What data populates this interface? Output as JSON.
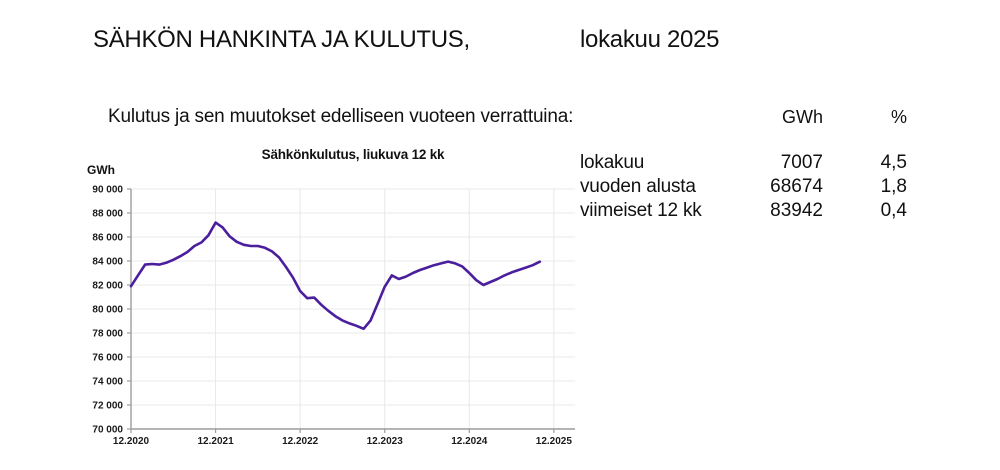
{
  "header": {
    "title": "SÄHKÖN HANKINTA JA KULUTUS,",
    "period": "lokakuu 2025"
  },
  "summary": {
    "caption": "Kulutus ja sen muutokset edelliseen vuoteen verrattuina:",
    "columns": {
      "gwh": "GWh",
      "pct": "%"
    },
    "rows": [
      {
        "label": "lokakuu",
        "gwh": "7007",
        "pct": "4,5"
      },
      {
        "label": "vuoden alusta",
        "gwh": "68674",
        "pct": "1,8"
      },
      {
        "label": "viimeiset 12 kk",
        "gwh": "83942",
        "pct": "0,4"
      }
    ]
  },
  "chart_data": {
    "type": "line",
    "title": "Sähkönkulutus, liukuva 12 kk",
    "ylabel": "GWh",
    "ylim": [
      70000,
      90000
    ],
    "ytick_step": 2000,
    "x_tick_labels": [
      "12.2020",
      "12.2021",
      "12.2022",
      "12.2023",
      "12.2024",
      "12.2025"
    ],
    "x_tick_month_index": [
      0,
      12,
      24,
      36,
      48,
      60
    ],
    "x_total_months": 63,
    "grid": true,
    "legend_position": "none",
    "line_color": "#4a1e9c",
    "grid_color": "#e8e8e8",
    "axis_color": "#9c9c9c",
    "series": [
      {
        "name": "Sähkönkulutus, liukuva 12 kk",
        "start": "12.2020",
        "end": "10.2025",
        "values": [
          81900,
          82800,
          83700,
          83750,
          83700,
          83850,
          84100,
          84400,
          84750,
          85250,
          85550,
          86150,
          87200,
          86800,
          86050,
          85600,
          85350,
          85250,
          85250,
          85100,
          84800,
          84300,
          83500,
          82600,
          81500,
          80900,
          80950,
          80350,
          79850,
          79400,
          79050,
          78800,
          78600,
          78350,
          79050,
          80450,
          81850,
          82800,
          82500,
          82700,
          83000,
          83250,
          83450,
          83650,
          83800,
          83950,
          83800,
          83550,
          83000,
          82400,
          82000,
          82250,
          82500,
          82800,
          83050,
          83250,
          83450,
          83650,
          83942
        ]
      }
    ]
  }
}
